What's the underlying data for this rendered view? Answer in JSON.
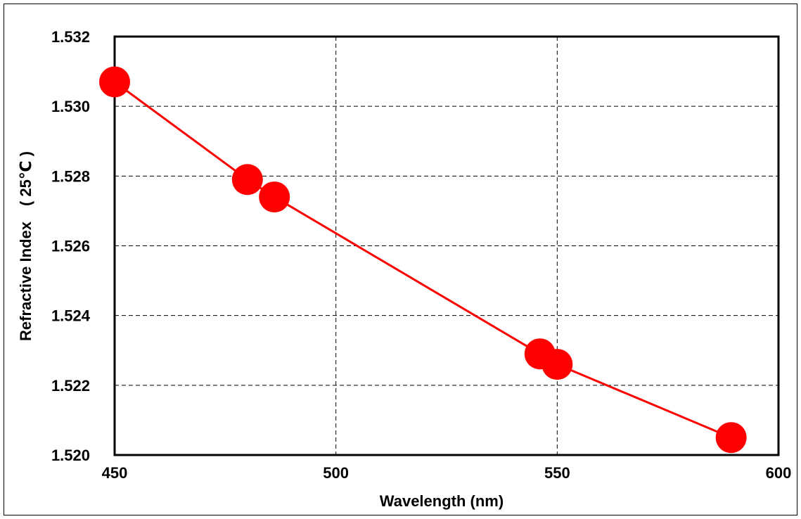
{
  "chart_data": {
    "type": "line",
    "xlabel": "Wavelength (nm)",
    "ylabel": "Refractive Index　( 25℃ )",
    "xlim": [
      450,
      600
    ],
    "ylim": [
      1.52,
      1.532
    ],
    "x_ticks": [
      "450",
      "500",
      "550",
      "600"
    ],
    "y_ticks": [
      "1.520",
      "1.522",
      "1.524",
      "1.526",
      "1.528",
      "1.530",
      "1.532"
    ],
    "grid": true,
    "grid_style": "dashed",
    "legend": "none",
    "series": [
      {
        "color": "#ff0000",
        "marker": "circle",
        "points": [
          {
            "x": 450.0,
            "y": 1.5307
          },
          {
            "x": 480.0,
            "y": 1.5279
          },
          {
            "x": 486.1,
            "y": 1.5274
          },
          {
            "x": 546.1,
            "y": 1.5229
          },
          {
            "x": 550.0,
            "y": 1.5226
          },
          {
            "x": 589.3,
            "y": 1.5205
          }
        ]
      }
    ]
  }
}
